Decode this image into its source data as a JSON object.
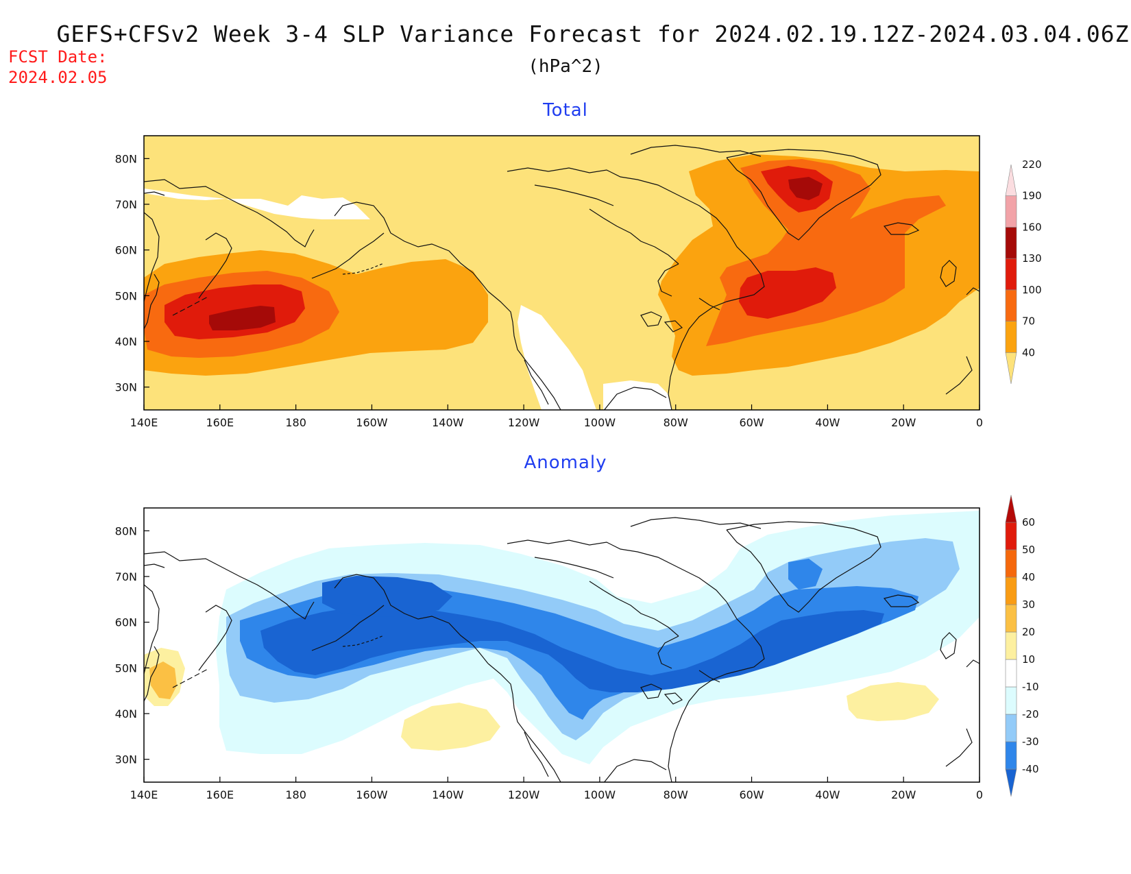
{
  "title": "GEFS+CFSv2 Week 3-4 SLP Variance Forecast for 2024.02.19.12Z-2024.03.04.06Z",
  "units": "(hPa^2)",
  "fcst_date_label": "FCST Date:",
  "fcst_date_value": "2024.02.05",
  "x_ticks": [
    "140E",
    "160E",
    "180",
    "160W",
    "140W",
    "120W",
    "100W",
    "80W",
    "60W",
    "40W",
    "20W",
    "0"
  ],
  "y_ticks": [
    "30N",
    "40N",
    "50N",
    "60N",
    "70N",
    "80N"
  ],
  "panels": [
    {
      "title": "Total",
      "colorbar": {
        "labels": [
          "40",
          "70",
          "100",
          "130",
          "160",
          "190",
          "220"
        ],
        "colors": [
          "#fde27a",
          "#fba30f",
          "#f86a10",
          "#e01b0b",
          "#a50a08",
          "#f2a3a8",
          "#fbdde0"
        ]
      }
    },
    {
      "title": "Anomaly",
      "colorbar": {
        "labels": [
          "-40",
          "-30",
          "-20",
          "-10",
          "10",
          "20",
          "30",
          "40",
          "50",
          "60"
        ],
        "colors": [
          "#1964d2",
          "#2f86ea",
          "#93cbf8",
          "#dcfcfe",
          "#ffffff",
          "#fdf0a0",
          "#fbc044",
          "#f99c14",
          "#f5680c",
          "#e01b0b",
          "#b40a08"
        ]
      }
    }
  ]
}
